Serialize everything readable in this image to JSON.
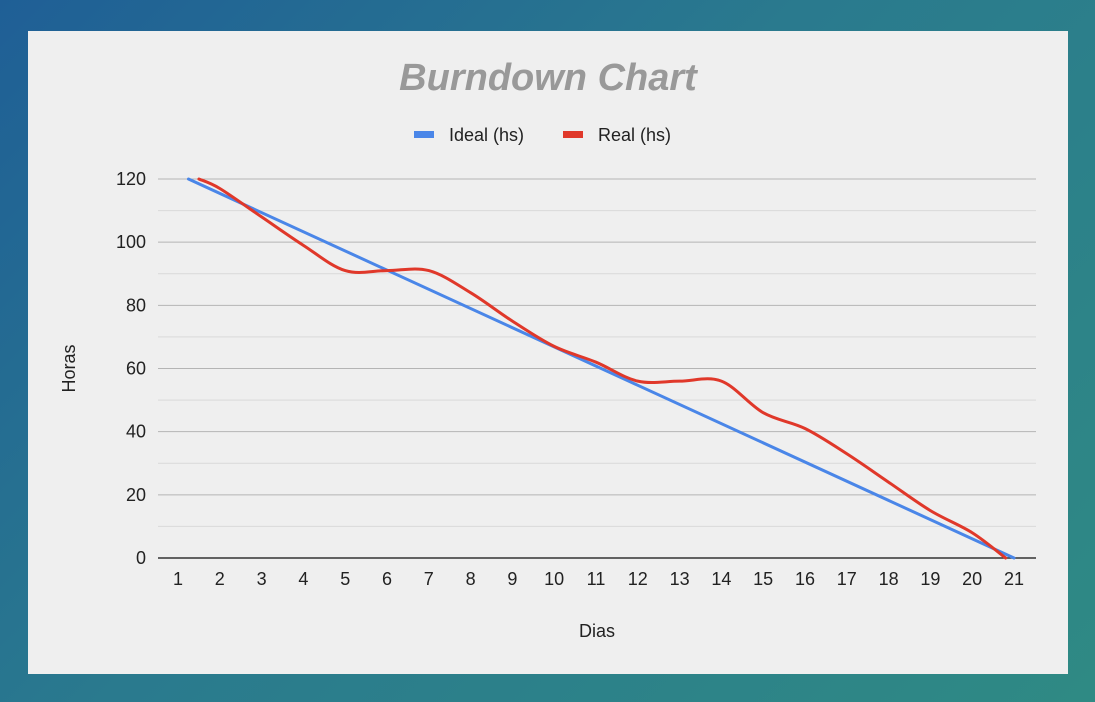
{
  "chart_data": {
    "type": "line",
    "title": "Burndown Chart",
    "xlabel": "Dias",
    "ylabel": "Horas",
    "x": [
      1,
      2,
      3,
      4,
      5,
      6,
      7,
      8,
      9,
      10,
      11,
      12,
      13,
      14,
      15,
      16,
      17,
      18,
      19,
      20,
      21
    ],
    "categories": [
      "1",
      "2",
      "3",
      "4",
      "5",
      "6",
      "7",
      "8",
      "9",
      "10",
      "11",
      "12",
      "13",
      "14",
      "15",
      "16",
      "17",
      "18",
      "19",
      "20",
      "21"
    ],
    "ylim": [
      0,
      120
    ],
    "yticks": [
      "0",
      "20",
      "40",
      "60",
      "80",
      "100",
      "120"
    ],
    "grid": true,
    "legend_position": "top",
    "series": [
      {
        "name": "Ideal (hs)",
        "color": "#4a86e8",
        "x": [
          1.25,
          21
        ],
        "values": [
          120,
          0
        ]
      },
      {
        "name": "Real (hs)",
        "color": "#e0382a",
        "x": [
          1.5,
          2,
          3,
          4,
          5,
          6,
          7,
          8,
          9,
          10,
          11,
          12,
          13,
          14,
          15,
          16,
          17,
          18,
          19,
          20,
          20.8
        ],
        "values": [
          120,
          117,
          108,
          99,
          91,
          91,
          91,
          84,
          75,
          67,
          62,
          56,
          56,
          56,
          46,
          41,
          33,
          24,
          15,
          8,
          0
        ]
      }
    ]
  }
}
